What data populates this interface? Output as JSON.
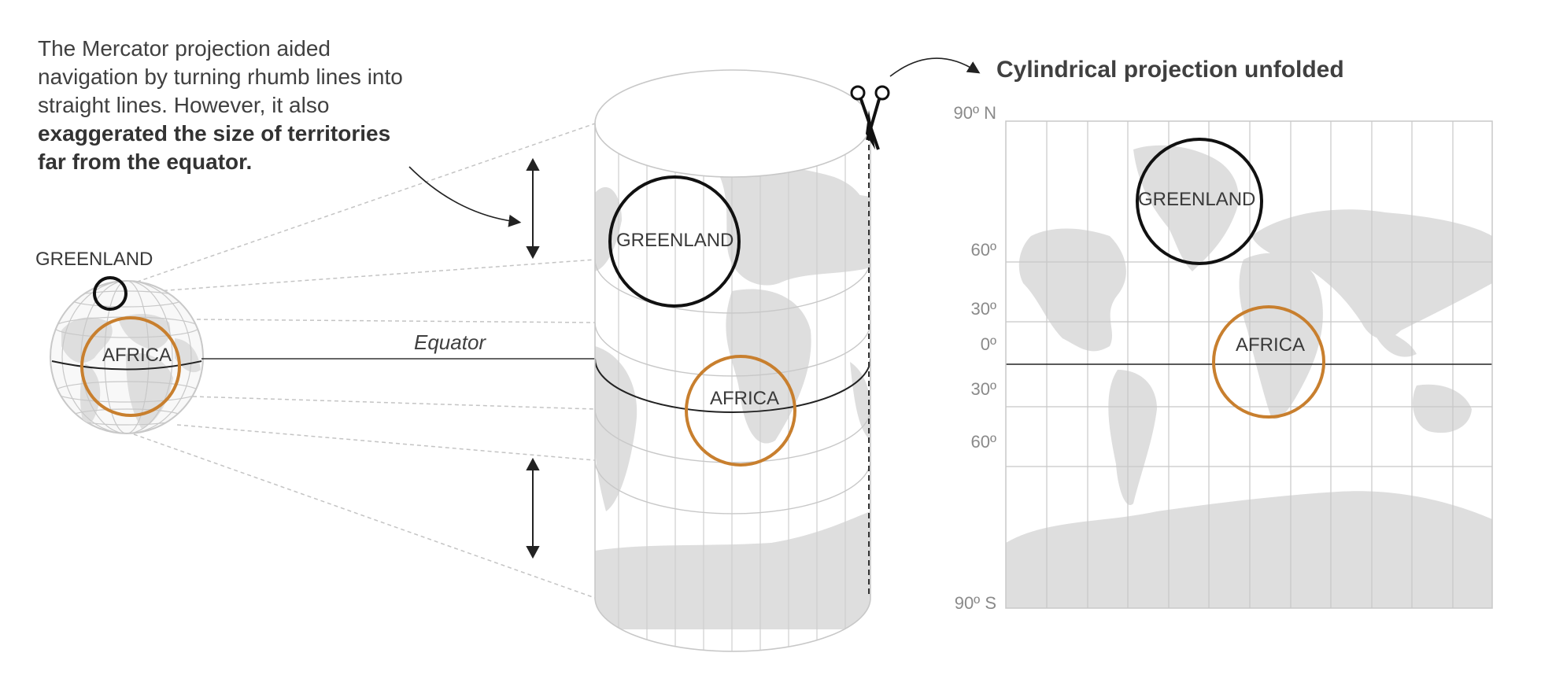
{
  "intro": {
    "line1": "The Mercator projection aided",
    "line2": "navigation by turning rhumb lines into",
    "line3": "straight lines. However, it also",
    "bold1": "exaggerated the size of territories",
    "bold2": "far from the equator."
  },
  "globe": {
    "greenland_label": "GREENLAND",
    "africa_label": "AFRICA"
  },
  "cylinder": {
    "equator_label": "Equator",
    "greenland_label": "GREENLAND",
    "africa_label": "AFRICA"
  },
  "flat_map": {
    "title": "Cylindrical projection unfolded",
    "greenland_label": "GREENLAND",
    "africa_label": "AFRICA",
    "latitudes": [
      "90º N",
      "60º",
      "30º",
      "0º",
      "30º",
      "60º",
      "90º S"
    ]
  },
  "colors": {
    "land": "#dedede",
    "grid": "#c8c8c8",
    "africa_circle": "#c87f2e",
    "greenland_circle": "#111111",
    "text": "#404040"
  },
  "icons": [
    "scissors-icon",
    "double-arrow-icon"
  ]
}
